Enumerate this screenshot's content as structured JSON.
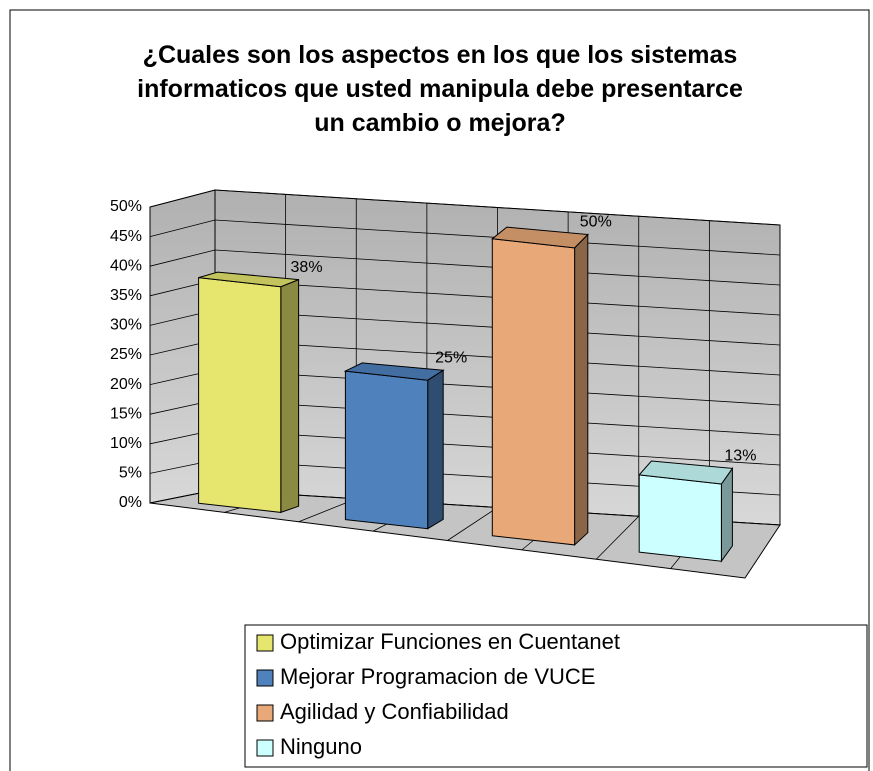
{
  "chart_data": {
    "type": "bar3d",
    "title": "¿Cuales son los aspectos en los que los sistemas informaticos que usted manipula debe presentarce un cambio o mejora?",
    "categories": [
      "Optimizar Funciones en Cuentanet",
      "Mejorar Programacion de VUCE",
      "Agilidad y Confiabilidad",
      "Ninguno"
    ],
    "values": [
      38,
      25,
      50,
      13
    ],
    "value_labels": [
      "38%",
      "25%",
      "50%",
      "13%"
    ],
    "colors": [
      "#e6e66e",
      "#4f81bd",
      "#e8a878",
      "#ccffff"
    ],
    "ylim": [
      0,
      50
    ],
    "yticks": [
      {
        "value": 0,
        "label": "0%"
      },
      {
        "value": 5,
        "label": "5%"
      },
      {
        "value": 10,
        "label": "10%"
      },
      {
        "value": 15,
        "label": "15%"
      },
      {
        "value": 20,
        "label": "20%"
      },
      {
        "value": 25,
        "label": "25%"
      },
      {
        "value": 30,
        "label": "30%"
      },
      {
        "value": 35,
        "label": "35%"
      },
      {
        "value": 40,
        "label": "40%"
      },
      {
        "value": 45,
        "label": "45%"
      },
      {
        "value": 50,
        "label": "50%"
      }
    ],
    "grid": true,
    "legend": "bottom"
  }
}
